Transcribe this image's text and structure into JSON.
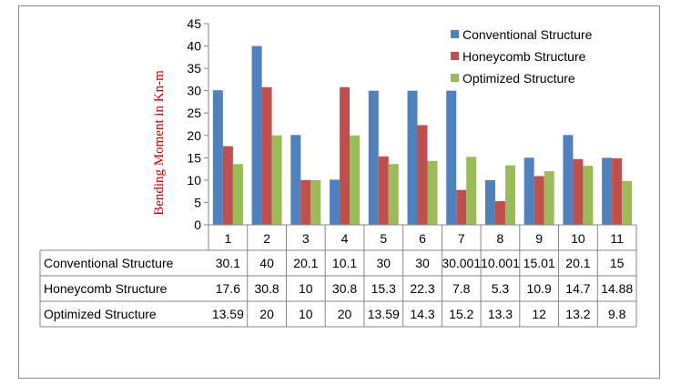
{
  "chart_data": {
    "type": "bar",
    "title": "",
    "xlabel": "",
    "ylabel": "Bending Moment in Kn-m",
    "ylim": [
      0,
      45
    ],
    "yticks": [
      0,
      5,
      10,
      15,
      20,
      25,
      30,
      35,
      40,
      45
    ],
    "categories": [
      "1",
      "2",
      "3",
      "4",
      "5",
      "6",
      "7",
      "8",
      "9",
      "10",
      "11"
    ],
    "grid": false,
    "legend": "top-right",
    "series": [
      {
        "name": "Conventional Structure",
        "color": "#4f81bd",
        "values": [
          30.1,
          40,
          20.1,
          10.1,
          30,
          30,
          30.001,
          10.001,
          15.01,
          20.1,
          15
        ],
        "labels": [
          "30.1",
          "40",
          "20.1",
          "10.1",
          "30",
          "30",
          "30.001",
          "10.001",
          "15.01",
          "20.1",
          "15"
        ]
      },
      {
        "name": "Honeycomb Structure",
        "color": "#c0504d",
        "values": [
          17.6,
          30.8,
          10,
          30.8,
          15.3,
          22.3,
          7.8,
          5.3,
          10.9,
          14.7,
          14.88
        ],
        "labels": [
          "17.6",
          "30.8",
          "10",
          "30.8",
          "15.3",
          "22.3",
          "7.8",
          "5.3",
          "10.9",
          "14.7",
          "14.88"
        ]
      },
      {
        "name": "Optimized  Structure",
        "color": "#9bbb59",
        "values": [
          13.59,
          20,
          10,
          20,
          13.59,
          14.3,
          15.2,
          13.3,
          12,
          13.2,
          9.8
        ],
        "labels": [
          "13.59",
          "20",
          "10",
          "20",
          "13.59",
          "14.3",
          "15.2",
          "13.3",
          "12",
          "13.2",
          "9.8"
        ]
      }
    ]
  }
}
